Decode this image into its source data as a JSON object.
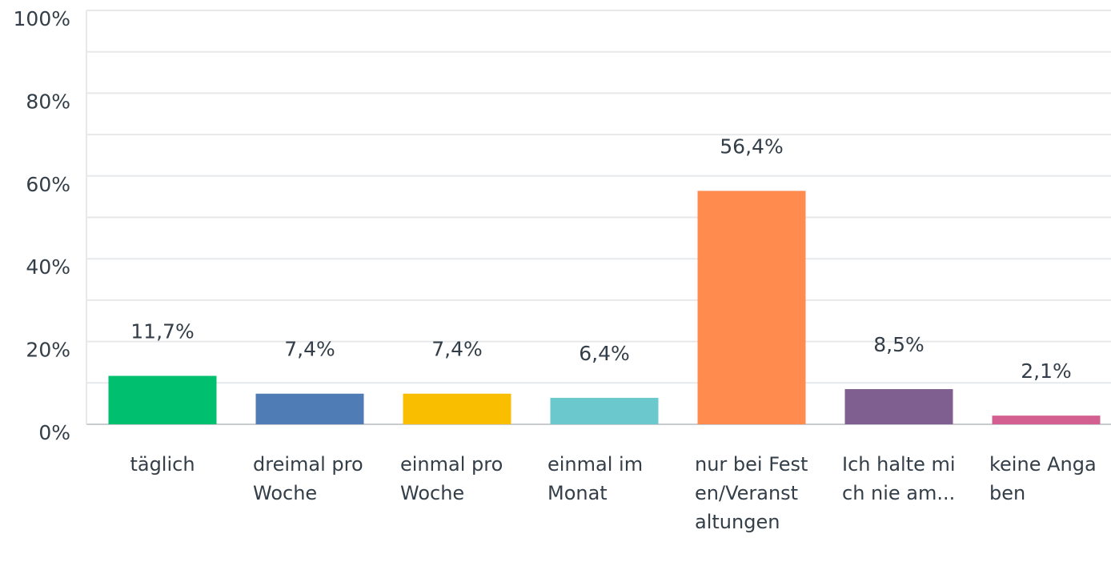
{
  "chart_data": {
    "type": "bar",
    "categories": [
      "täglich",
      "dreimal pro Woche",
      "einmal pro Woche",
      "einmal im Monat",
      "nur bei Festen/Veranstaltungen",
      "Ich halte mich nie am...",
      "keine Angaben"
    ],
    "values": [
      11.7,
      7.4,
      7.4,
      6.4,
      56.4,
      8.5,
      2.1
    ],
    "value_labels": [
      "11,7%",
      "7,4%",
      "7,4%",
      "6,4%",
      "56,4%",
      "8,5%",
      "2,1%"
    ],
    "colors": [
      "#00bf6f",
      "#507cb6",
      "#f9be00",
      "#6bc8cd",
      "#ff8b4f",
      "#7f5f90",
      "#d25f90"
    ],
    "ylim": [
      0,
      100
    ],
    "yticks": [
      {
        "value": 0,
        "label": "0%"
      },
      {
        "value": 20,
        "label": "20%"
      },
      {
        "value": 40,
        "label": "40%"
      },
      {
        "value": 60,
        "label": "60%"
      },
      {
        "value": 80,
        "label": "80%"
      },
      {
        "value": 100,
        "label": "100%"
      }
    ],
    "grid": true
  }
}
